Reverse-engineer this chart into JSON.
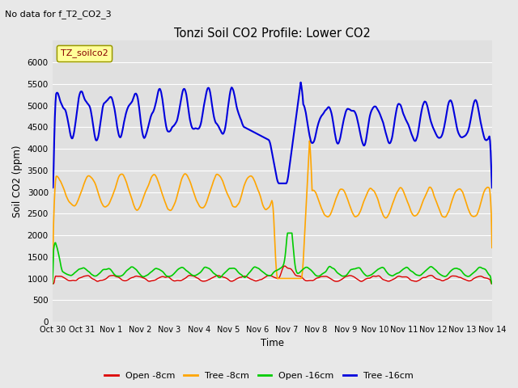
{
  "title": "Tonzi Soil CO2 Profile: Lower CO2",
  "subtitle": "No data for f_T2_CO2_3",
  "xlabel": "Time",
  "ylabel": "Soil CO2 (ppm)",
  "legend_label": "TZ_soilco2",
  "ylim": [
    0,
    6500
  ],
  "yticks": [
    0,
    500,
    1000,
    1500,
    2000,
    2500,
    3000,
    3500,
    4000,
    4500,
    5000,
    5500,
    6000
  ],
  "fig_bg_color": "#e8e8e8",
  "plot_bg_color": "#e0e0e0",
  "grid_color": "#ffffff",
  "line_colors": {
    "open_8cm": "#dd0000",
    "tree_8cm": "#ffa500",
    "open_16cm": "#00cc00",
    "tree_16cm": "#0000dd"
  },
  "legend_entries": [
    "Open -8cm",
    "Tree -8cm",
    "Open -16cm",
    "Tree -16cm"
  ],
  "x_tick_labels": [
    "Oct 30",
    "Oct 31",
    "Nov 1",
    "Nov 2",
    "Nov 3",
    "Nov 4",
    "Nov 5",
    "Nov 6",
    "Nov 7",
    "Nov 8",
    "Nov 9",
    "Nov 10",
    "Nov 11",
    "Nov 12",
    "Nov 13",
    "Nov 14"
  ],
  "n_points": 700
}
